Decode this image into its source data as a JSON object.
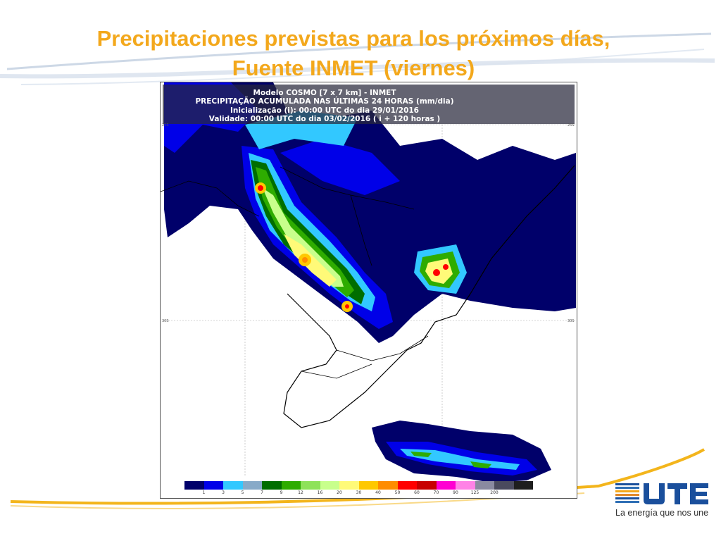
{
  "slide": {
    "title_line1": "Precipitaciones previstas para los próximos días,",
    "title_line2": "Fuente INMET (viernes)",
    "accent_color": "#f3a81c",
    "swoosh_color": "#f3b51c"
  },
  "map": {
    "header": {
      "line1": "Modelo COSMO [7 x 7 km] - INMET",
      "line2": "PRECIPITAÇÃO ACUMULADA NAS ÚLTIMAS 24 HORAS (mm/dia)",
      "line3": "Inicialização (i): 00:00 UTC do dia 29/01/2016",
      "line4": "Validade: 00:00 UTC do dia 03/02/2016 ( i + 120 horas )"
    },
    "lat_ticks": [
      "25S",
      "30S"
    ],
    "colorbar": {
      "colors": [
        "#00006a",
        "#0000e8",
        "#32c8ff",
        "#88aac8",
        "#006e00",
        "#2eac00",
        "#8ee25a",
        "#c8ff8c",
        "#fffa78",
        "#ffc800",
        "#ff8c00",
        "#ff0000",
        "#c80000",
        "#ff00d2",
        "#ff82e6",
        "#8a8aa0",
        "#4a4a5e",
        "#1e1e1e"
      ],
      "labels": [
        "1",
        "3",
        "5",
        "7",
        "9",
        "12",
        "16",
        "20",
        "30",
        "40",
        "50",
        "60",
        "70",
        "90",
        "125",
        "200"
      ]
    }
  },
  "logo": {
    "name": "UTE",
    "tagline": "La energía que nos une"
  }
}
